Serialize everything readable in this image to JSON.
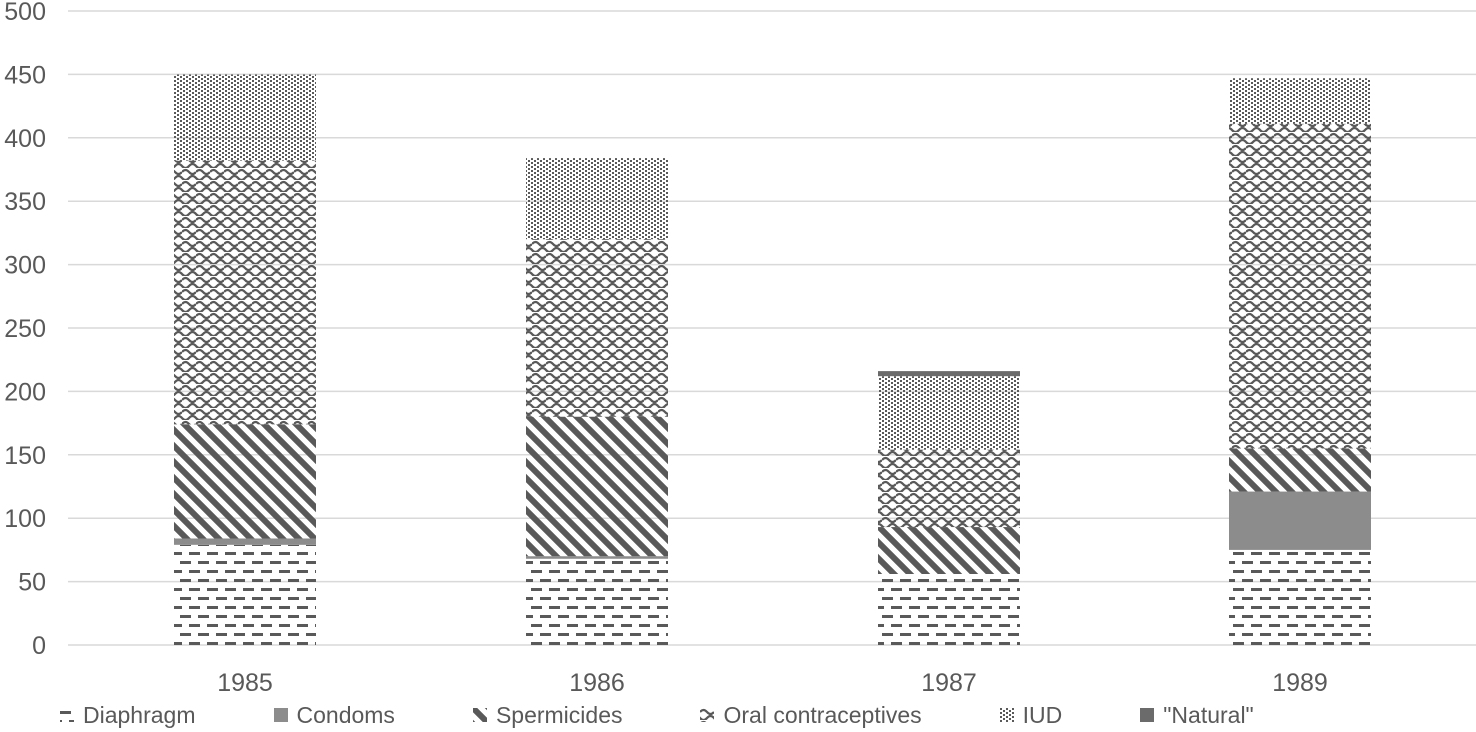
{
  "chart_data": {
    "type": "bar",
    "stacked": true,
    "title": "",
    "xlabel": "",
    "ylabel": "",
    "categories": [
      "1985",
      "1986",
      "1987",
      "1989"
    ],
    "series": [
      {
        "name": "Diaphragm",
        "pattern": "dashed-horizontal",
        "values": [
          79,
          68,
          56,
          75
        ]
      },
      {
        "name": "Condoms",
        "pattern": "solid-gray",
        "values": [
          5,
          2,
          0,
          46
        ]
      },
      {
        "name": "Spermicides",
        "pattern": "diagonal-stripes",
        "values": [
          90,
          110,
          37,
          34
        ]
      },
      {
        "name": "Oral contraceptives",
        "pattern": "horizontal-waves",
        "values": [
          208,
          140,
          61,
          256
        ]
      },
      {
        "name": "IUD",
        "pattern": "dots",
        "values": [
          68,
          64,
          58,
          36
        ]
      },
      {
        "name": "\"Natural\"",
        "pattern": "solid-dark-gray",
        "values": [
          0,
          0,
          4,
          0
        ]
      }
    ],
    "stack_totals": [
      450,
      384,
      216,
      447
    ],
    "ylim": [
      0,
      500
    ],
    "yticks": [
      0,
      50,
      100,
      150,
      200,
      250,
      300,
      350,
      400,
      450,
      500
    ],
    "grid": "horizontal",
    "legend_position": "bottom"
  },
  "colors": {
    "pattern_ink": "#595959",
    "condoms_fill": "#8c8c8c",
    "natural_fill": "#6b6b6b",
    "gridline": "#d9d9d9",
    "axis_text": "#595959",
    "background": "#ffffff"
  }
}
